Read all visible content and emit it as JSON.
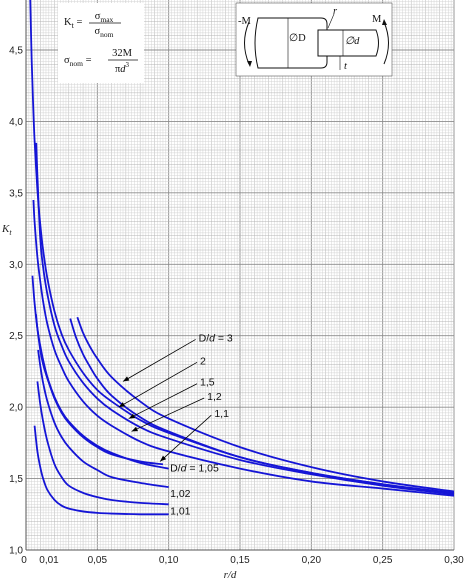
{
  "chart_data": {
    "type": "line",
    "title": "",
    "xlabel": "r/d",
    "ylabel": "K_t",
    "xlim": [
      0,
      0.3
    ],
    "ylim": [
      1.0,
      4.85
    ],
    "grid": true,
    "x_ticks": [
      "0",
      "0,01",
      "0,05",
      "0,10",
      "0,15",
      "0,20",
      "0,25",
      "0,30"
    ],
    "y_ticks": [
      "1,0",
      "1,5",
      "2,0",
      "2,5",
      "3,0",
      "3,5",
      "4,0",
      "4,5"
    ],
    "colors": {
      "curve": "#1515d6",
      "grid_minor": "#d4d4d4",
      "grid_major": "#8c8c8c",
      "leader": "#000000"
    },
    "series": [
      {
        "name": "D/d = 3",
        "x": [
          0.003,
          0.004,
          0.005,
          0.006,
          0.008,
          0.01,
          0.012,
          0.015,
          0.02,
          0.025,
          0.03,
          0.04,
          0.05,
          0.06,
          0.08,
          0.1,
          0.15,
          0.2,
          0.25,
          0.3
        ],
        "y": [
          4.85,
          4.42,
          4.12,
          3.87,
          3.52,
          3.28,
          3.1,
          2.9,
          2.67,
          2.51,
          2.4,
          2.24,
          2.12,
          2.04,
          1.91,
          1.82,
          1.65,
          1.54,
          1.46,
          1.4
        ]
      },
      {
        "name": "2",
        "x": [
          0.0072,
          0.008,
          0.01,
          0.012,
          0.015,
          0.02,
          0.025,
          0.03,
          0.04,
          0.05,
          0.06,
          0.08,
          0.1,
          0.15,
          0.2,
          0.25,
          0.3
        ],
        "y": [
          3.85,
          3.62,
          3.18,
          2.98,
          2.79,
          2.57,
          2.43,
          2.32,
          2.17,
          2.06,
          1.98,
          1.86,
          1.78,
          1.63,
          1.53,
          1.45,
          1.39
        ]
      },
      {
        "name": "",
        "x": [
          0.036,
          0.04,
          0.045,
          0.05,
          0.06,
          0.08,
          0.1,
          0.15,
          0.2,
          0.25,
          0.3
        ],
        "y": [
          2.63,
          2.52,
          2.42,
          2.34,
          2.21,
          2.04,
          1.92,
          1.72,
          1.58,
          1.48,
          1.41
        ]
      },
      {
        "name": "",
        "x": [
          0.031,
          0.035,
          0.04,
          0.045,
          0.05,
          0.06,
          0.08,
          0.1,
          0.15,
          0.2,
          0.25,
          0.3
        ],
        "y": [
          2.62,
          2.49,
          2.37,
          2.28,
          2.2,
          2.08,
          1.93,
          1.83,
          1.65,
          1.54,
          1.46,
          1.39
        ]
      },
      {
        "name": "1,5",
        "x": [
          0.0052,
          0.006,
          0.008,
          0.01,
          0.012,
          0.015,
          0.02,
          0.025,
          0.03,
          0.04,
          0.05,
          0.06,
          0.08,
          0.1,
          0.15,
          0.2,
          0.25,
          0.3
        ],
        "y": [
          3.45,
          3.3,
          3.05,
          2.88,
          2.74,
          2.58,
          2.4,
          2.28,
          2.18,
          2.04,
          1.94,
          1.87,
          1.76,
          1.69,
          1.57,
          1.48,
          1.43,
          1.38
        ]
      },
      {
        "name": "1,2",
        "x": [
          0.0045,
          0.006,
          0.008,
          0.01,
          0.012,
          0.015,
          0.02,
          0.025,
          0.03,
          0.04,
          0.05,
          0.06,
          0.08,
          0.1
        ],
        "y": [
          2.92,
          2.73,
          2.55,
          2.43,
          2.33,
          2.21,
          2.07,
          1.97,
          1.9,
          1.8,
          1.73,
          1.68,
          1.61,
          1.57
        ]
      },
      {
        "name": "1,1",
        "x": [
          0.007,
          0.008,
          0.01,
          0.012,
          0.015,
          0.02,
          0.025,
          0.03,
          0.04,
          0.05,
          0.06,
          0.08,
          0.096
        ],
        "y": [
          2.65,
          2.55,
          2.4,
          2.3,
          2.2,
          2.06,
          1.96,
          1.89,
          1.79,
          1.72,
          1.67,
          1.62,
          1.6
        ]
      },
      {
        "name": "D/d = 1,05",
        "x": [
          0.0085,
          0.01,
          0.012,
          0.015,
          0.02,
          0.025,
          0.03,
          0.04,
          0.05,
          0.06,
          0.08,
          0.1
        ],
        "y": [
          2.4,
          2.29,
          2.17,
          2.04,
          1.89,
          1.79,
          1.72,
          1.62,
          1.56,
          1.51,
          1.47,
          1.44
        ]
      },
      {
        "name": "1,02",
        "x": [
          0.008,
          0.01,
          0.012,
          0.015,
          0.02,
          0.025,
          0.03,
          0.04,
          0.05,
          0.06,
          0.08,
          0.1
        ],
        "y": [
          2.18,
          2.02,
          1.9,
          1.76,
          1.6,
          1.51,
          1.45,
          1.4,
          1.37,
          1.35,
          1.33,
          1.32
        ]
      },
      {
        "name": "1,01",
        "x": [
          0.006,
          0.008,
          0.01,
          0.012,
          0.015,
          0.02,
          0.025,
          0.03,
          0.04,
          0.05,
          0.06,
          0.08,
          0.1
        ],
        "y": [
          1.87,
          1.69,
          1.58,
          1.5,
          1.42,
          1.35,
          1.31,
          1.29,
          1.27,
          1.26,
          1.255,
          1.25,
          1.25
        ]
      }
    ],
    "curve_labels": [
      {
        "text": "D/d = 3",
        "x": 0.121,
        "y": 2.46,
        "arrow_to": [
          0.068,
          2.18
        ]
      },
      {
        "text": "2",
        "x": 0.122,
        "y": 2.3,
        "arrow_to": [
          0.065,
          2.0
        ]
      },
      {
        "text": "1,5",
        "x": 0.122,
        "y": 2.15,
        "arrow_to": [
          0.072,
          1.92
        ]
      },
      {
        "text": "1,2",
        "x": 0.127,
        "y": 2.05,
        "arrow_to": [
          0.074,
          1.83
        ]
      },
      {
        "text": "1,1",
        "x": 0.132,
        "y": 1.93,
        "arrow_to": [
          0.094,
          1.62
        ]
      },
      {
        "text": "D/d = 1,05",
        "x": 0.101,
        "y": 1.55
      },
      {
        "text": "1,02",
        "x": 0.101,
        "y": 1.37
      },
      {
        "text": "1,01",
        "x": 0.101,
        "y": 1.25
      }
    ],
    "formulas": {
      "kt_lhs": "K",
      "kt_sub": "t",
      "kt_num": "σ",
      "kt_num_sub": "max",
      "kt_den": "σ",
      "kt_den_sub": "nom",
      "snom_lhs": "σ",
      "snom_lhs_sub": "nom",
      "snom_num": "32M",
      "snom_den_pi": "π",
      "snom_den_d": "d",
      "snom_den_exp": "3"
    },
    "inset": {
      "left_moment": "-M",
      "right_moment": "M",
      "big_dia": "∅D",
      "small_dia": "∅d",
      "fillet": "r",
      "length": "t"
    }
  }
}
